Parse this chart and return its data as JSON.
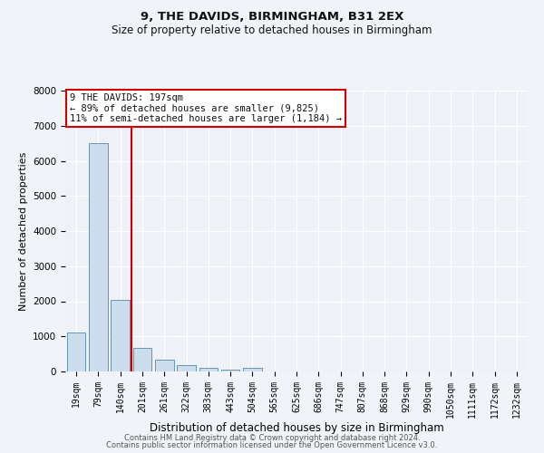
{
  "title": "9, THE DAVIDS, BIRMINGHAM, B31 2EX",
  "subtitle": "Size of property relative to detached houses in Birmingham",
  "xlabel": "Distribution of detached houses by size in Birmingham",
  "ylabel": "Number of detached properties",
  "footer_line1": "Contains HM Land Registry data © Crown copyright and database right 2024.",
  "footer_line2": "Contains public sector information licensed under the Open Government Licence v3.0.",
  "annotation_title": "9 THE DAVIDS: 197sqm",
  "annotation_line2": "← 89% of detached houses are smaller (9,825)",
  "annotation_line3": "11% of semi-detached houses are larger (1,184) →",
  "bar_color": "#ccdded",
  "bar_edge_color": "#5588aa",
  "vline_color": "#cc0000",
  "vline_x": 2.5,
  "categories": [
    "19sqm",
    "79sqm",
    "140sqm",
    "201sqm",
    "261sqm",
    "322sqm",
    "383sqm",
    "443sqm",
    "504sqm",
    "565sqm",
    "625sqm",
    "686sqm",
    "747sqm",
    "807sqm",
    "868sqm",
    "929sqm",
    "990sqm",
    "1050sqm",
    "1111sqm",
    "1172sqm",
    "1232sqm"
  ],
  "values": [
    1100,
    6500,
    2050,
    680,
    330,
    175,
    100,
    60,
    100,
    0,
    0,
    0,
    0,
    0,
    0,
    0,
    0,
    0,
    0,
    0,
    0
  ],
  "ylim": [
    0,
    8000
  ],
  "yticks": [
    0,
    1000,
    2000,
    3000,
    4000,
    5000,
    6000,
    7000,
    8000
  ],
  "bg_color": "#f0f4f8",
  "plot_bg_color": "#eef2f7",
  "grid_color": "#ffffff",
  "title_fontsize": 9.5,
  "subtitle_fontsize": 8.5,
  "ylabel_fontsize": 8,
  "xlabel_fontsize": 8.5,
  "tick_fontsize": 7,
  "ann_fontsize": 7.5,
  "footer_fontsize": 6
}
